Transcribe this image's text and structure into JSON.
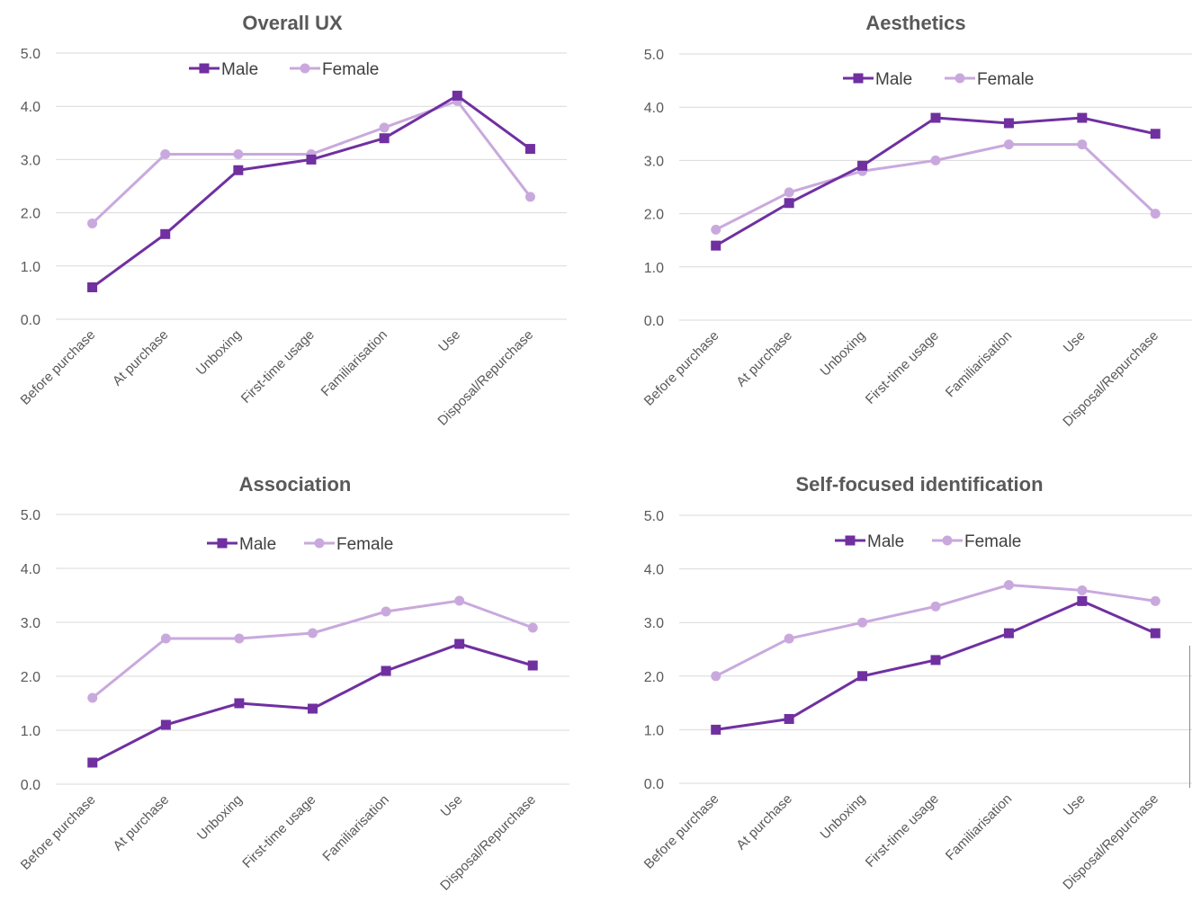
{
  "colors": {
    "male": "#7030a0",
    "female": "#c9a9dd",
    "grid": "#d9d9d9",
    "text": "#595959"
  },
  "chart_data": [
    {
      "type": "line",
      "title": "Overall UX",
      "categories": [
        "Before purchase",
        "At purchase",
        "Unboxing",
        "First-time usage",
        "Familiarisation",
        "Use",
        "Disposal/Repurchase"
      ],
      "ylim": [
        0,
        5
      ],
      "yticks": [
        "0.0",
        "1.0",
        "2.0",
        "3.0",
        "4.0",
        "5.0"
      ],
      "grid": true,
      "legend_position": "top",
      "series": [
        {
          "name": "Male",
          "marker": "square",
          "values": [
            0.6,
            1.6,
            2.8,
            3.0,
            3.4,
            4.2,
            3.2
          ]
        },
        {
          "name": "Female",
          "marker": "circle",
          "values": [
            1.8,
            3.1,
            3.1,
            3.1,
            3.6,
            4.1,
            2.3
          ]
        }
      ]
    },
    {
      "type": "line",
      "title": "Aesthetics",
      "categories": [
        "Before purchase",
        "At purchase",
        "Unboxing",
        "First-time usage",
        "Familiarisation",
        "Use",
        "Disposal/Repurchase"
      ],
      "ylim": [
        0,
        5
      ],
      "yticks": [
        "0.0",
        "1.0",
        "2.0",
        "3.0",
        "4.0",
        "5.0"
      ],
      "grid": true,
      "legend_position": "top",
      "series": [
        {
          "name": "Male",
          "marker": "square",
          "values": [
            1.4,
            2.2,
            2.9,
            3.8,
            3.7,
            3.8,
            3.5
          ]
        },
        {
          "name": "Female",
          "marker": "circle",
          "values": [
            1.7,
            2.4,
            2.8,
            3.0,
            3.3,
            3.3,
            2.0
          ]
        }
      ]
    },
    {
      "type": "line",
      "title": "Association",
      "categories": [
        "Before purchase",
        "At purchase",
        "Unboxing",
        "First-time usage",
        "Familiarisation",
        "Use",
        "Disposal/Repurchase"
      ],
      "ylim": [
        0,
        5
      ],
      "yticks": [
        "0.0",
        "1.0",
        "2.0",
        "3.0",
        "4.0",
        "5.0"
      ],
      "grid": true,
      "legend_position": "top",
      "series": [
        {
          "name": "Male",
          "marker": "square",
          "values": [
            0.4,
            1.1,
            1.5,
            1.4,
            2.1,
            2.6,
            2.2
          ]
        },
        {
          "name": "Female",
          "marker": "circle",
          "values": [
            1.6,
            2.7,
            2.7,
            2.8,
            3.2,
            3.4,
            2.9
          ]
        }
      ]
    },
    {
      "type": "line",
      "title": "Self-focused identification",
      "categories": [
        "Before purchase",
        "At purchase",
        "Unboxing",
        "First-time usage",
        "Familiarisation",
        "Use",
        "Disposal/Repurchase"
      ],
      "ylim": [
        0,
        5
      ],
      "yticks": [
        "0.0",
        "1.0",
        "2.0",
        "3.0",
        "4.0",
        "5.0"
      ],
      "grid": true,
      "legend_position": "top",
      "series": [
        {
          "name": "Male",
          "marker": "square",
          "values": [
            1.0,
            1.2,
            2.0,
            2.3,
            2.8,
            3.4,
            2.8
          ]
        },
        {
          "name": "Female",
          "marker": "circle",
          "values": [
            2.0,
            2.7,
            3.0,
            3.3,
            3.7,
            3.6,
            3.4
          ]
        }
      ]
    }
  ]
}
